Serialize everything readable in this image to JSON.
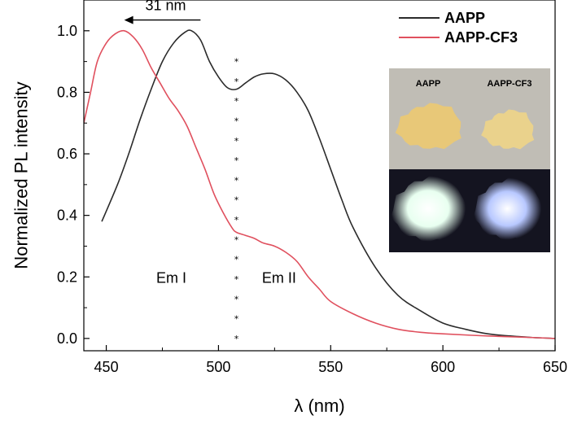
{
  "chart_data": {
    "type": "line",
    "xlabel": "λ (nm)",
    "ylabel": "Normalized PL intensity",
    "xlim": [
      440,
      650
    ],
    "ylim": [
      -0.04,
      1.1
    ],
    "xticks": [
      450,
      500,
      550,
      600,
      650
    ],
    "yticks": [
      0.0,
      0.2,
      0.4,
      0.6,
      0.8,
      1.0
    ],
    "xtick_labels": [
      "450",
      "500",
      "550",
      "600",
      "650"
    ],
    "ytick_labels": [
      "0.0",
      "0.2",
      "0.4",
      "0.6",
      "0.8",
      "1.0"
    ],
    "grid": false,
    "legend_position": "top-right",
    "series": [
      {
        "name": "AAPP",
        "color": "#2b2b2b",
        "x": [
          448,
          455,
          460,
          465,
          470,
          475,
          480,
          485,
          488,
          492,
          496,
          500,
          504,
          508,
          512,
          516,
          520,
          525,
          530,
          535,
          540,
          545,
          550,
          555,
          560,
          570,
          580,
          590,
          600,
          610,
          620,
          630,
          640,
          650
        ],
        "y": [
          0.38,
          0.5,
          0.6,
          0.71,
          0.81,
          0.9,
          0.96,
          0.995,
          1.0,
          0.97,
          0.9,
          0.85,
          0.815,
          0.81,
          0.83,
          0.85,
          0.86,
          0.86,
          0.84,
          0.8,
          0.74,
          0.65,
          0.55,
          0.45,
          0.36,
          0.23,
          0.14,
          0.09,
          0.05,
          0.03,
          0.015,
          0.008,
          0.003,
          0.0
        ]
      },
      {
        "name": "AAPP-CF3",
        "color": "#e0505e",
        "x": [
          440,
          443,
          446,
          450,
          454,
          458,
          462,
          466,
          470,
          474,
          478,
          482,
          486,
          490,
          494,
          498,
          502,
          506,
          508,
          512,
          516,
          520,
          525,
          530,
          535,
          540,
          545,
          550,
          560,
          570,
          580,
          590,
          600,
          620,
          640,
          650
        ],
        "y": [
          0.7,
          0.8,
          0.9,
          0.96,
          0.99,
          1.0,
          0.98,
          0.94,
          0.88,
          0.83,
          0.78,
          0.74,
          0.69,
          0.62,
          0.55,
          0.47,
          0.41,
          0.36,
          0.345,
          0.335,
          0.325,
          0.31,
          0.3,
          0.28,
          0.25,
          0.2,
          0.16,
          0.12,
          0.08,
          0.05,
          0.03,
          0.02,
          0.015,
          0.008,
          0.003,
          0.0
        ]
      }
    ],
    "annotations": {
      "shift_label": "31 nm",
      "shift_arrow": {
        "from_x": 492,
        "to_x": 458,
        "y": 1.035
      },
      "divider_x": 508,
      "divider_y_range": [
        0.0,
        0.9
      ],
      "divider_count": 15,
      "region_1": {
        "label": "Em I",
        "x": 479,
        "y": 0.2
      },
      "region_2": {
        "label": "Em II",
        "x": 527,
        "y": 0.2
      }
    },
    "inset": {
      "labels": [
        "AAPP",
        "AAPP-CF3"
      ],
      "top_bg": "#c0bdb5",
      "bottom_bg": "#141420",
      "powder_color": "#e8c878",
      "glow_colors": [
        "#e8fff0",
        "#b8c8ff"
      ]
    }
  }
}
